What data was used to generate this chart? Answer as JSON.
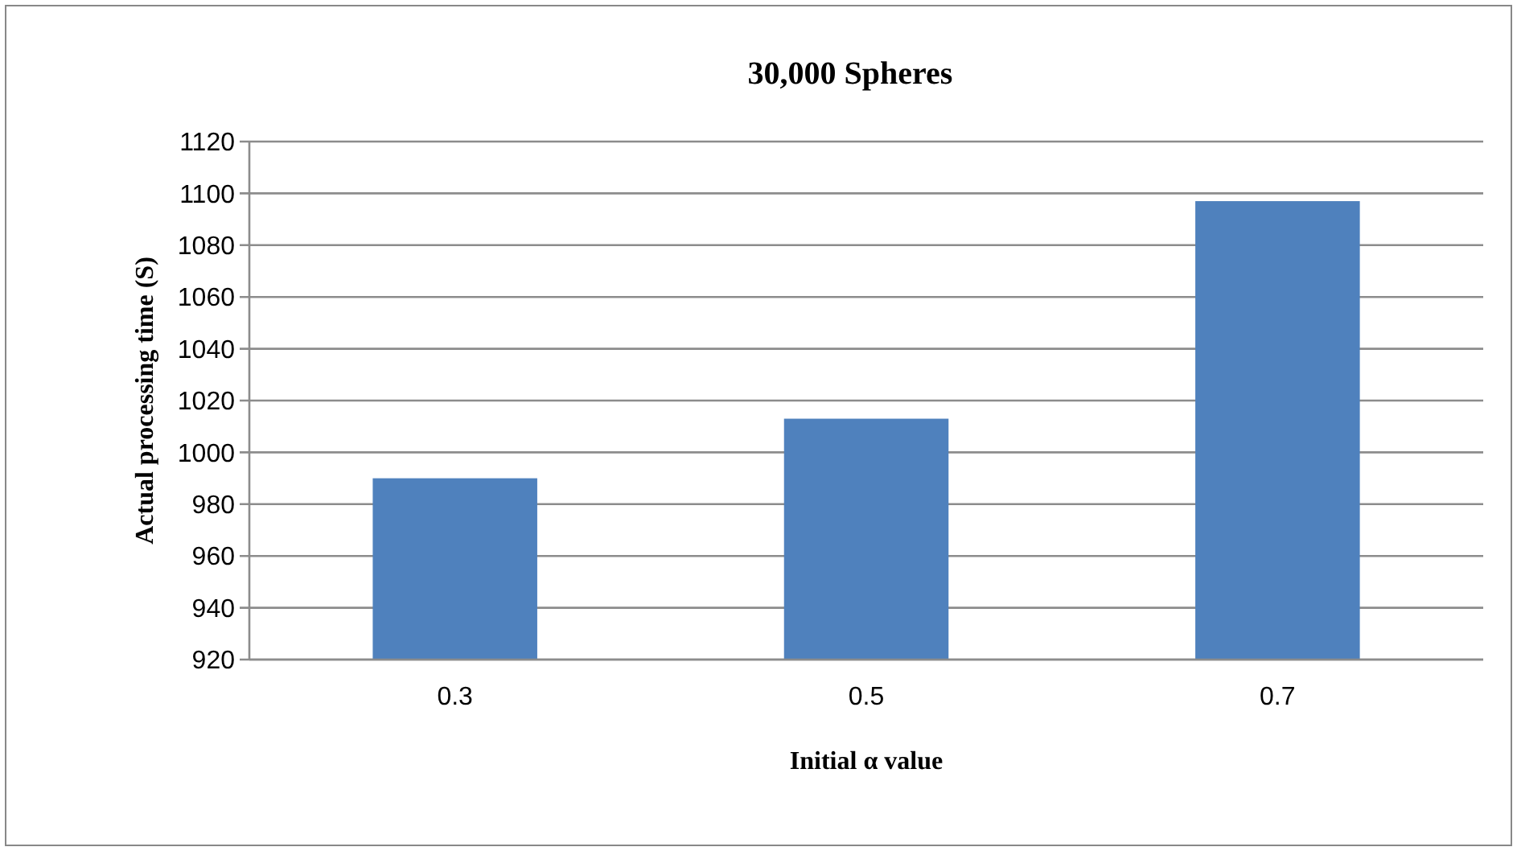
{
  "chart_data": {
    "type": "bar",
    "title": "30,000 Spheres",
    "xlabel": "Initial α value",
    "ylabel": "Actual processing time (S)",
    "categories": [
      "0.3",
      "0.5",
      "0.7"
    ],
    "values": [
      990,
      1013,
      1097
    ],
    "color": "#4f81bd",
    "ylim": [
      920,
      1120
    ],
    "yticks": [
      920,
      940,
      960,
      980,
      1000,
      1020,
      1040,
      1060,
      1080,
      1100,
      1120
    ],
    "grid": "y"
  }
}
